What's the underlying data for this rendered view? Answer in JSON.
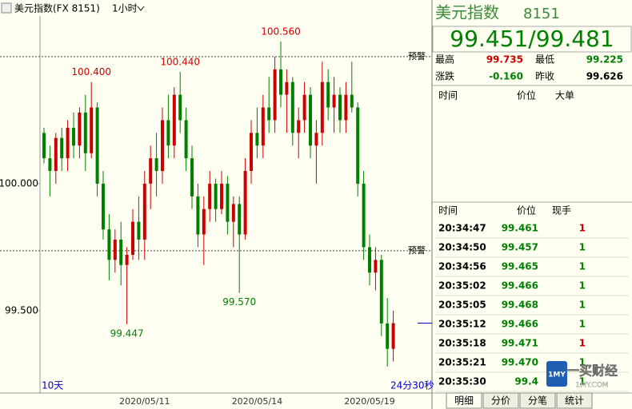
{
  "chart_data": {
    "type": "candlestick",
    "title": "美元指数(FX 8151)",
    "period": "1小时",
    "range_label": "10天",
    "countdown": "24分30秒",
    "categories": [
      null,
      null,
      null,
      null,
      null,
      null,
      null,
      null,
      null,
      null,
      null,
      null,
      null,
      null,
      null,
      null,
      null,
      "2020/05/11",
      null,
      null,
      null,
      null,
      null,
      null,
      null,
      null,
      null,
      null,
      null,
      null,
      null,
      null,
      null,
      null,
      null,
      null,
      "2020/05/14",
      null,
      null,
      null,
      null,
      null,
      null,
      null,
      null,
      null,
      null,
      null,
      null,
      null,
      null,
      null,
      null,
      null,
      null,
      "2020/05/19",
      null,
      null,
      null,
      null
    ],
    "open": [
      100.2,
      100.1,
      100.05,
      100.18,
      100.1,
      100.22,
      100.15,
      100.28,
      100.12,
      100.3,
      100.0,
      99.82,
      99.7,
      99.78,
      99.68,
      99.72,
      99.85,
      99.78,
      100.0,
      100.1,
      100.05,
      100.25,
      100.15,
      100.35,
      100.25,
      100.1,
      99.95,
      99.8,
      99.9,
      100.0,
      99.9,
      100.0,
      99.85,
      99.92,
      99.8,
      100.05,
      100.2,
      100.15,
      100.3,
      100.25,
      100.45,
      100.35,
      100.4,
      100.2,
      100.25,
      100.35,
      100.15,
      100.2,
      100.4,
      100.3,
      100.35,
      100.25,
      100.35,
      100.3,
      100.0,
      99.75,
      99.65,
      99.7,
      99.45,
      99.35
    ],
    "high": [
      100.22,
      100.15,
      100.2,
      100.22,
      100.25,
      100.28,
      100.3,
      100.35,
      100.4,
      100.32,
      100.05,
      99.88,
      99.82,
      99.85,
      99.75,
      99.9,
      99.95,
      100.05,
      100.15,
      100.2,
      100.3,
      100.35,
      100.38,
      100.44,
      100.3,
      100.15,
      100.0,
      99.95,
      100.05,
      100.02,
      100.05,
      100.03,
      99.95,
      99.95,
      100.1,
      100.25,
      100.3,
      100.35,
      100.42,
      100.5,
      100.56,
      100.45,
      100.42,
      100.3,
      100.4,
      100.38,
      100.25,
      100.48,
      100.45,
      100.42,
      100.38,
      100.4,
      100.48,
      100.32,
      100.05,
      99.8,
      99.75,
      99.72,
      99.55,
      99.5
    ],
    "low": [
      100.08,
      99.95,
      100.0,
      100.05,
      100.05,
      100.1,
      100.1,
      100.05,
      100.1,
      99.95,
      99.78,
      99.62,
      99.65,
      99.6,
      99.447,
      99.7,
      99.7,
      99.7,
      99.9,
      99.95,
      100.0,
      100.1,
      100.1,
      100.2,
      100.05,
      99.9,
      99.75,
      99.68,
      99.85,
      99.85,
      99.88,
      99.8,
      99.75,
      99.57,
      99.78,
      100.0,
      100.1,
      100.1,
      100.2,
      100.2,
      100.3,
      100.2,
      100.15,
      100.1,
      100.2,
      100.1,
      100.0,
      100.15,
      100.25,
      100.2,
      100.2,
      100.2,
      100.28,
      99.95,
      99.7,
      99.6,
      99.58,
      99.4,
      99.28,
      99.3
    ],
    "close": [
      100.1,
      100.05,
      100.18,
      100.1,
      100.22,
      100.15,
      100.28,
      100.12,
      100.3,
      100.0,
      99.82,
      99.7,
      99.78,
      99.68,
      99.72,
      99.85,
      99.78,
      100.0,
      100.1,
      100.05,
      100.25,
      100.15,
      100.35,
      100.25,
      100.1,
      99.95,
      99.8,
      99.9,
      100.0,
      99.9,
      100.0,
      99.85,
      99.92,
      99.8,
      100.05,
      100.2,
      100.15,
      100.3,
      100.25,
      100.45,
      100.35,
      100.4,
      100.2,
      100.25,
      100.35,
      100.15,
      100.2,
      100.4,
      100.3,
      100.35,
      100.25,
      100.35,
      100.3,
      100.0,
      99.75,
      99.65,
      99.7,
      99.45,
      99.35,
      99.451
    ],
    "up_color": "#cc0000",
    "down_color": "#008000",
    "ylim": [
      99.176,
      100.723
    ],
    "yticks": [
      {
        "value": 100,
        "label": "100.000"
      },
      {
        "value": 99.5,
        "label": "99.500"
      }
    ],
    "alerts": [
      {
        "value": 100.5,
        "label": "预警"
      },
      {
        "value": 99.736,
        "label": "预警"
      }
    ],
    "annotations": [
      {
        "value": 100.4,
        "label": "100.400",
        "kind": "high"
      },
      {
        "value": 100.44,
        "label": "100.440",
        "kind": "high"
      },
      {
        "value": 100.56,
        "label": "100.560",
        "kind": "high"
      },
      {
        "value": 99.447,
        "label": "99.447",
        "kind": "low"
      },
      {
        "value": 99.57,
        "label": "99.570",
        "kind": "low"
      }
    ]
  },
  "quote": {
    "name": "美元指数",
    "code": "8151",
    "price": "99.451/99.481",
    "fields": [
      {
        "label": "最高",
        "value": "99.735",
        "color": "#cc0000"
      },
      {
        "label": "最低",
        "value": "99.225",
        "color": "#008000"
      },
      {
        "label": "涨跌",
        "value": "-0.160",
        "color": "#008000"
      },
      {
        "label": "昨收",
        "value": "99.626",
        "color": "#000000"
      }
    ],
    "big_header": [
      "时间",
      "价位",
      "大单"
    ],
    "detail_header": [
      "时间",
      "价位",
      "现手"
    ],
    "rows": [
      [
        "20:34:47",
        "99.461",
        "1",
        "#cc0000"
      ],
      [
        "20:34:50",
        "99.457",
        "1",
        "#008000"
      ],
      [
        "20:34:56",
        "99.465",
        "1",
        "#008000"
      ],
      [
        "20:35:02",
        "99.466",
        "1",
        "#008000"
      ],
      [
        "20:35:05",
        "99.468",
        "1",
        "#008000"
      ],
      [
        "20:35:12",
        "99.466",
        "1",
        "#008000"
      ],
      [
        "20:35:18",
        "99.471",
        "1",
        "#cc0000"
      ],
      [
        "20:35:21",
        "99.470",
        "1",
        "#008000"
      ],
      [
        "20:35:30",
        "99.4",
        "1",
        "#008000"
      ]
    ],
    "tabs": [
      "明细",
      "分价",
      "分笔",
      "统计"
    ]
  },
  "logo": {
    "brand": "一买财经",
    "site": "1MY.COM",
    "badge": "1MY"
  }
}
